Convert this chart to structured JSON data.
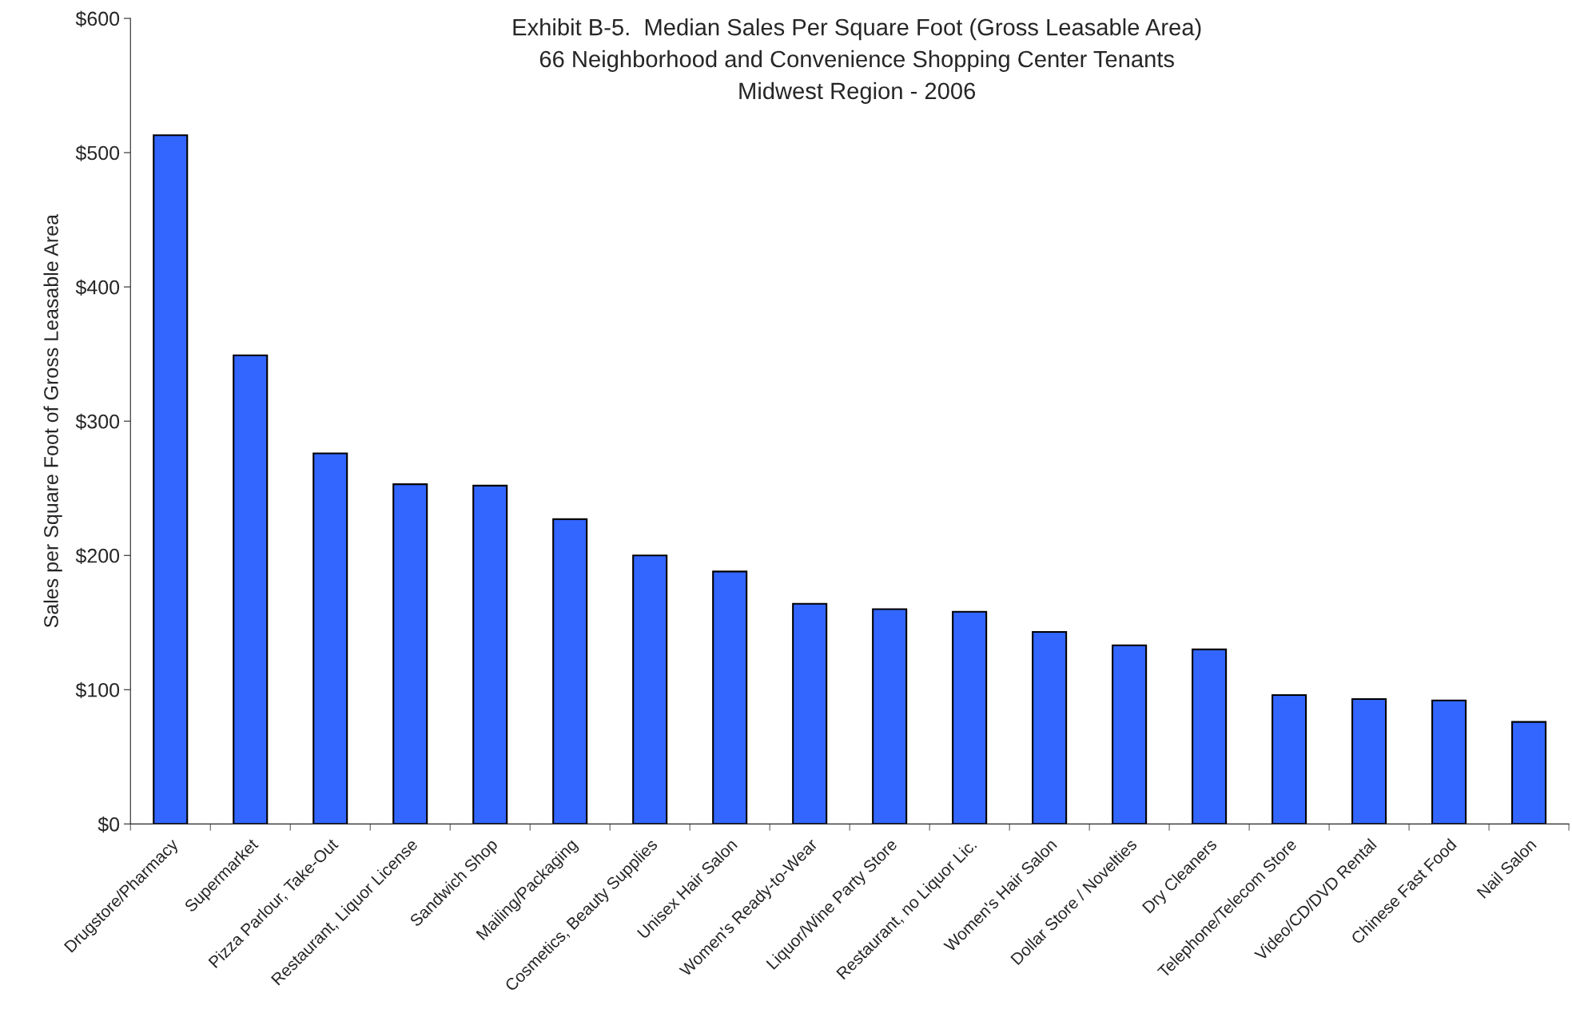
{
  "chart_data": {
    "type": "bar",
    "title": "Exhibit B-5.  Median Sales Per Square Foot (Gross Leasable Area)\n66 Neighborhood and Convenience Shopping Center Tenants\nMidwest Region - 2006",
    "ylabel": "Sales per Square Foot of Gross Leasable Area",
    "categories": [
      "Drugstore/Pharmacy",
      "Supermarket",
      "Pizza Parlour, Take-Out",
      "Restaurant, Liquor License",
      "Sandwich Shop",
      "Mailing/Packaging",
      "Cosmetics, Beauty Supplies",
      "Unisex Hair Salon",
      "Women's Ready-to-Wear",
      "Liquor/Wine Party Store",
      "Restaurant, no Liquor Lic.",
      "Women's Hair Salon",
      "Dollar Store / Novelties",
      "Dry Cleaners",
      "Telephone/Telecom Store",
      "Video/CD/DVD Rental",
      "Chinese Fast Food",
      "Nail Salon"
    ],
    "values": [
      513,
      349,
      276,
      253,
      252,
      227,
      200,
      188,
      164,
      160,
      158,
      143,
      133,
      130,
      96,
      93,
      92,
      76
    ],
    "color": "#3366ff",
    "ylim": [
      0,
      600
    ],
    "yticks": [
      {
        "value": 0,
        "label": "$0"
      },
      {
        "value": 100,
        "label": "$100"
      },
      {
        "value": 200,
        "label": "$200"
      },
      {
        "value": 300,
        "label": "$300"
      },
      {
        "value": 400,
        "label": "$400"
      },
      {
        "value": 500,
        "label": "$500"
      },
      {
        "value": 600,
        "label": "$600"
      }
    ],
    "grid": false
  }
}
